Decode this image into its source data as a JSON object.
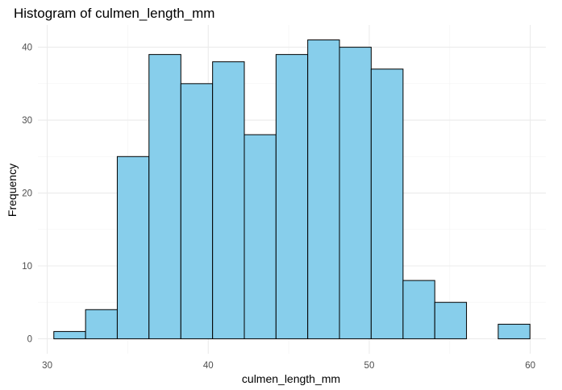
{
  "chart_data": {
    "type": "bar",
    "title": "Histogram of culmen_length_mm",
    "xlabel": "culmen_length_mm",
    "ylabel": "Frequency",
    "bin_width": 1.971,
    "bins": [
      {
        "x0": 30.41,
        "x1": 32.38,
        "count": 1
      },
      {
        "x0": 32.38,
        "x1": 34.35,
        "count": 4
      },
      {
        "x0": 34.35,
        "x1": 36.32,
        "count": 25
      },
      {
        "x0": 36.32,
        "x1": 38.3,
        "count": 39
      },
      {
        "x0": 38.3,
        "x1": 40.27,
        "count": 35
      },
      {
        "x0": 40.27,
        "x1": 42.24,
        "count": 38
      },
      {
        "x0": 42.24,
        "x1": 44.21,
        "count": 28
      },
      {
        "x0": 44.21,
        "x1": 46.18,
        "count": 39
      },
      {
        "x0": 46.18,
        "x1": 48.15,
        "count": 41
      },
      {
        "x0": 48.15,
        "x1": 50.12,
        "count": 40
      },
      {
        "x0": 50.12,
        "x1": 52.1,
        "count": 37
      },
      {
        "x0": 52.1,
        "x1": 54.07,
        "count": 8
      },
      {
        "x0": 54.07,
        "x1": 56.04,
        "count": 5
      },
      {
        "x0": 56.04,
        "x1": 58.01,
        "count": 0
      },
      {
        "x0": 58.01,
        "x1": 59.98,
        "count": 2
      }
    ],
    "xlim": [
      29.42,
      60.97
    ],
    "ylim": [
      -2.05,
      43.05
    ],
    "x_ticks": [
      30,
      40,
      50,
      60
    ],
    "x_tick_labels": [
      "30",
      "40",
      "50",
      "60"
    ],
    "y_ticks": [
      0,
      10,
      20,
      30,
      40
    ],
    "y_tick_labels": [
      "0",
      "10",
      "20",
      "30",
      "40"
    ],
    "grid": true,
    "legend": "none",
    "colors": {
      "bar_fill": "#87ceeb",
      "bar_outline": "#000000"
    }
  }
}
